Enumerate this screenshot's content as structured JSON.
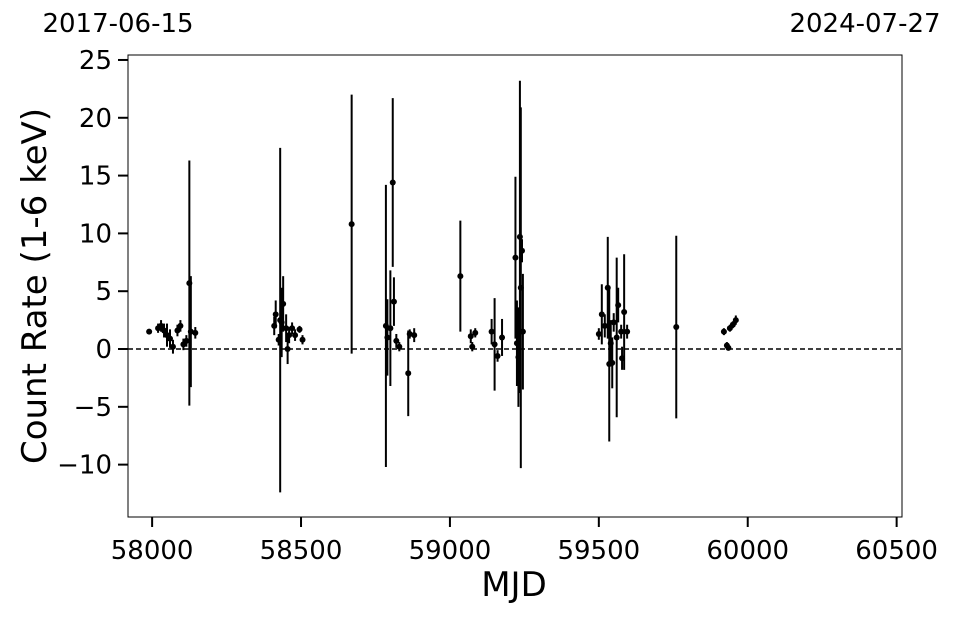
{
  "chart_data": {
    "type": "errorbar",
    "xlabel": "MJD",
    "ylabel": "Count Rate (1-6 keV)",
    "xlim": [
      57919,
      60518
    ],
    "ylim": [
      -14.53,
      25.43
    ],
    "xticks": [
      58000,
      58500,
      59000,
      59500,
      60000,
      60500
    ],
    "yticks": [
      {
        "value": -10,
        "label": "−10"
      },
      {
        "value": -5,
        "label": "−5"
      },
      0,
      5,
      10,
      15,
      20,
      25
    ],
    "x2ticks": [
      {
        "value": 57919,
        "label": "2017-06-15"
      },
      {
        "value": 60518,
        "label": "2024-07-27"
      }
    ],
    "hline": 0,
    "color": "#000000",
    "x": [
      57990,
      58020,
      58030,
      58040,
      58050,
      58060,
      58070,
      58085,
      58095,
      58105,
      58115,
      58125,
      58130,
      58145,
      58410,
      58415,
      58425,
      58430,
      58435,
      58440,
      58450,
      58455,
      58460,
      58470,
      58480,
      58495,
      58505,
      58670,
      58785,
      58790,
      58800,
      58808,
      58812,
      58820,
      58830,
      58860,
      58865,
      58880,
      59035,
      59070,
      59075,
      59085,
      59140,
      59150,
      59160,
      59175,
      59220,
      59225,
      59230,
      59235,
      59238,
      59242,
      59245,
      59500,
      59510,
      59520,
      59530,
      59535,
      59540,
      59545,
      59550,
      59560,
      59565,
      59575,
      59578,
      59585,
      59595,
      59760,
      59920,
      59930,
      59935,
      59940,
      59950,
      59960
    ],
    "values": [
      1.5,
      1.8,
      2.0,
      1.6,
      1.2,
      0.9,
      0.2,
      1.6,
      2.0,
      0.4,
      0.7,
      5.7,
      1.5,
      1.4,
      2.0,
      3.0,
      0.8,
      2.5,
      2.3,
      3.9,
      1.8,
      0.0,
      1.2,
      1.8,
      1.2,
      1.7,
      0.8,
      10.8,
      2.0,
      1.0,
      1.8,
      14.4,
      4.1,
      0.7,
      0.2,
      -2.1,
      1.3,
      1.2,
      6.3,
      1.1,
      0.2,
      1.4,
      1.5,
      0.4,
      -0.6,
      1.0,
      7.9,
      0.5,
      -0.7,
      9.7,
      5.3,
      8.5,
      1.5,
      1.3,
      3.0,
      2.0,
      5.3,
      -1.3,
      0.5,
      -1.2,
      2.3,
      1.0,
      3.8,
      1.5,
      -0.8,
      3.2,
      1.5,
      1.9,
      1.5,
      0.3,
      0.1,
      1.8,
      2.1,
      2.5
    ],
    "errors": [
      0.2,
      0.4,
      0.5,
      0.6,
      1.0,
      0.8,
      0.6,
      0.5,
      0.5,
      0.5,
      0.5,
      10.6,
      4.8,
      0.5,
      0.8,
      1.2,
      0.5,
      14.9,
      3.0,
      2.4,
      1.2,
      1.3,
      0.7,
      0.5,
      0.5,
      0.3,
      0.4,
      11.2,
      12.2,
      3.3,
      5.0,
      7.3,
      2.1,
      0.6,
      0.4,
      3.7,
      0.4,
      0.6,
      4.8,
      0.6,
      0.4,
      0.4,
      1.1,
      4.0,
      0.5,
      1.6,
      7.0,
      3.7,
      4.3,
      13.5,
      15.6,
      1.0,
      5.0,
      0.5,
      2.6,
      1.0,
      4.4,
      6.7,
      2.0,
      2.2,
      0.8,
      6.9,
      1.5,
      0.6,
      1.0,
      5.0,
      0.6,
      7.9,
      0.3,
      0.3,
      0.2,
      0.3,
      0.3,
      0.4
    ]
  }
}
